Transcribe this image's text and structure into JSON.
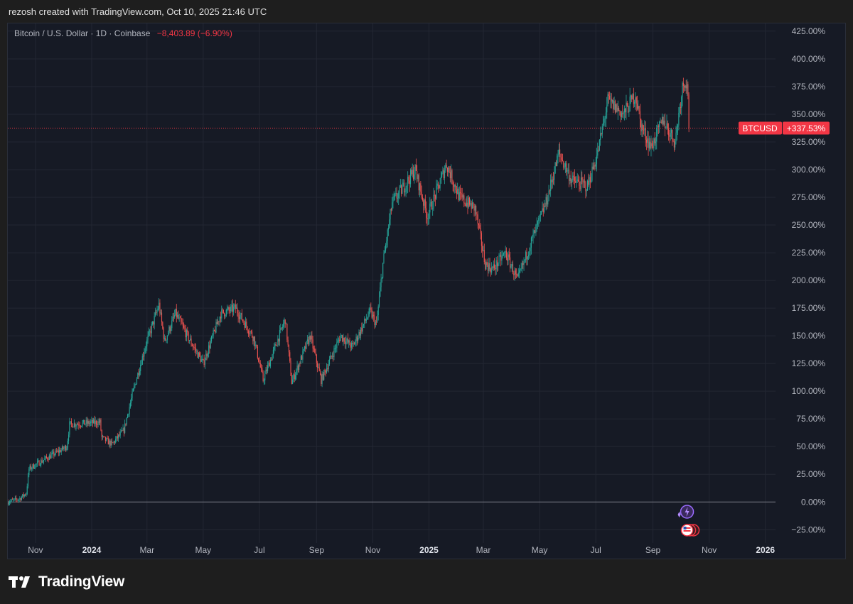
{
  "caption": "rezosh created with TradingView.com, Oct 10, 2025 21:46 UTC",
  "legend": {
    "symbol_text": "Bitcoin / U.S. Dollar · 1D · Coinbase",
    "change_text": "−8,403.89 (−6.90%)"
  },
  "brand": {
    "wordmark": "TradingView"
  },
  "colors": {
    "up": "#26a69a",
    "down": "#ef5350",
    "badge": "#f23645",
    "grid": "#232733",
    "axis_text": "#b2b5be",
    "zero_line": "#787b86"
  },
  "badge": {
    "label": "BTCUSD",
    "value": "+337.53%"
  },
  "chart_data": {
    "type": "candlestick",
    "y_unit": "percent change",
    "ylim": [
      -37,
      432
    ],
    "y_ticks": [
      425,
      400,
      375,
      350,
      325,
      300,
      275,
      250,
      225,
      200,
      175,
      150,
      125,
      100,
      75,
      50,
      25,
      0,
      -25
    ],
    "y_tick_labels": [
      "425.00%",
      "400.00%",
      "375.00%",
      "350.00%",
      "325.00%",
      "300.00%",
      "275.00%",
      "250.00%",
      "225.00%",
      "200.00%",
      "175.00%",
      "150.00%",
      "125.00%",
      "100.00%",
      "75.00%",
      "50.00%",
      "25.00%",
      "0.00%",
      "−25.00%"
    ],
    "x_range": [
      "2023-10-02",
      "2026-01-12"
    ],
    "x_ticks": [
      {
        "date": "2023-11-01",
        "label": "Nov",
        "bold": false
      },
      {
        "date": "2024-01-01",
        "label": "2024",
        "bold": true
      },
      {
        "date": "2024-03-01",
        "label": "Mar",
        "bold": false
      },
      {
        "date": "2024-05-01",
        "label": "May",
        "bold": false
      },
      {
        "date": "2024-07-01",
        "label": "Jul",
        "bold": false
      },
      {
        "date": "2024-09-01",
        "label": "Sep",
        "bold": false
      },
      {
        "date": "2024-11-01",
        "label": "Nov",
        "bold": false
      },
      {
        "date": "2025-01-01",
        "label": "2025",
        "bold": true
      },
      {
        "date": "2025-03-01",
        "label": "Mar",
        "bold": false
      },
      {
        "date": "2025-05-01",
        "label": "May",
        "bold": false
      },
      {
        "date": "2025-07-01",
        "label": "Jul",
        "bold": false
      },
      {
        "date": "2025-09-01",
        "label": "Sep",
        "bold": false
      },
      {
        "date": "2025-11-01",
        "label": "Nov",
        "bold": false
      },
      {
        "date": "2026-01-01",
        "label": "2026",
        "bold": true
      }
    ],
    "series": [
      {
        "close_path": [
          [
            "2023-10-02",
            0
          ],
          [
            "2023-10-15",
            3
          ],
          [
            "2023-10-22",
            8
          ],
          [
            "2023-10-25",
            30
          ],
          [
            "2023-11-10",
            38
          ],
          [
            "2023-12-05",
            50
          ],
          [
            "2023-12-08",
            70
          ],
          [
            "2024-01-10",
            72
          ],
          [
            "2024-01-12",
            58
          ],
          [
            "2024-01-23",
            52
          ],
          [
            "2024-02-05",
            65
          ],
          [
            "2024-02-15",
            100
          ],
          [
            "2024-02-28",
            140
          ],
          [
            "2024-03-14",
            178
          ],
          [
            "2024-03-20",
            145
          ],
          [
            "2024-04-01",
            170
          ],
          [
            "2024-04-15",
            148
          ],
          [
            "2024-05-01",
            125
          ],
          [
            "2024-05-20",
            170
          ],
          [
            "2024-06-05",
            175
          ],
          [
            "2024-06-25",
            148
          ],
          [
            "2024-07-05",
            110
          ],
          [
            "2024-07-29",
            165
          ],
          [
            "2024-08-05",
            108
          ],
          [
            "2024-08-25",
            150
          ],
          [
            "2024-09-06",
            110
          ],
          [
            "2024-09-27",
            150
          ],
          [
            "2024-10-10",
            140
          ],
          [
            "2024-10-29",
            172
          ],
          [
            "2024-11-05",
            160
          ],
          [
            "2024-11-12",
            215
          ],
          [
            "2024-11-22",
            270
          ],
          [
            "2024-12-05",
            285
          ],
          [
            "2024-12-17",
            300
          ],
          [
            "2024-12-30",
            258
          ],
          [
            "2025-01-07",
            275
          ],
          [
            "2025-01-20",
            305
          ],
          [
            "2025-02-03",
            275
          ],
          [
            "2025-02-20",
            265
          ],
          [
            "2025-03-03",
            215
          ],
          [
            "2025-03-11",
            210
          ],
          [
            "2025-03-25",
            225
          ],
          [
            "2025-04-07",
            200
          ],
          [
            "2025-04-22",
            235
          ],
          [
            "2025-05-08",
            270
          ],
          [
            "2025-05-22",
            315
          ],
          [
            "2025-06-05",
            290
          ],
          [
            "2025-06-22",
            285
          ],
          [
            "2025-07-03",
            315
          ],
          [
            "2025-07-14",
            362
          ],
          [
            "2025-07-31",
            350
          ],
          [
            "2025-08-13",
            368
          ],
          [
            "2025-08-19",
            340
          ],
          [
            "2025-08-30",
            320
          ],
          [
            "2025-09-12",
            345
          ],
          [
            "2025-09-25",
            325
          ],
          [
            "2025-10-03",
            375
          ],
          [
            "2025-10-06",
            382
          ],
          [
            "2025-10-09",
            370
          ],
          [
            "2025-10-10",
            337.53
          ]
        ]
      }
    ],
    "last_value": 337.53,
    "last_value_label": "+337.53%"
  }
}
